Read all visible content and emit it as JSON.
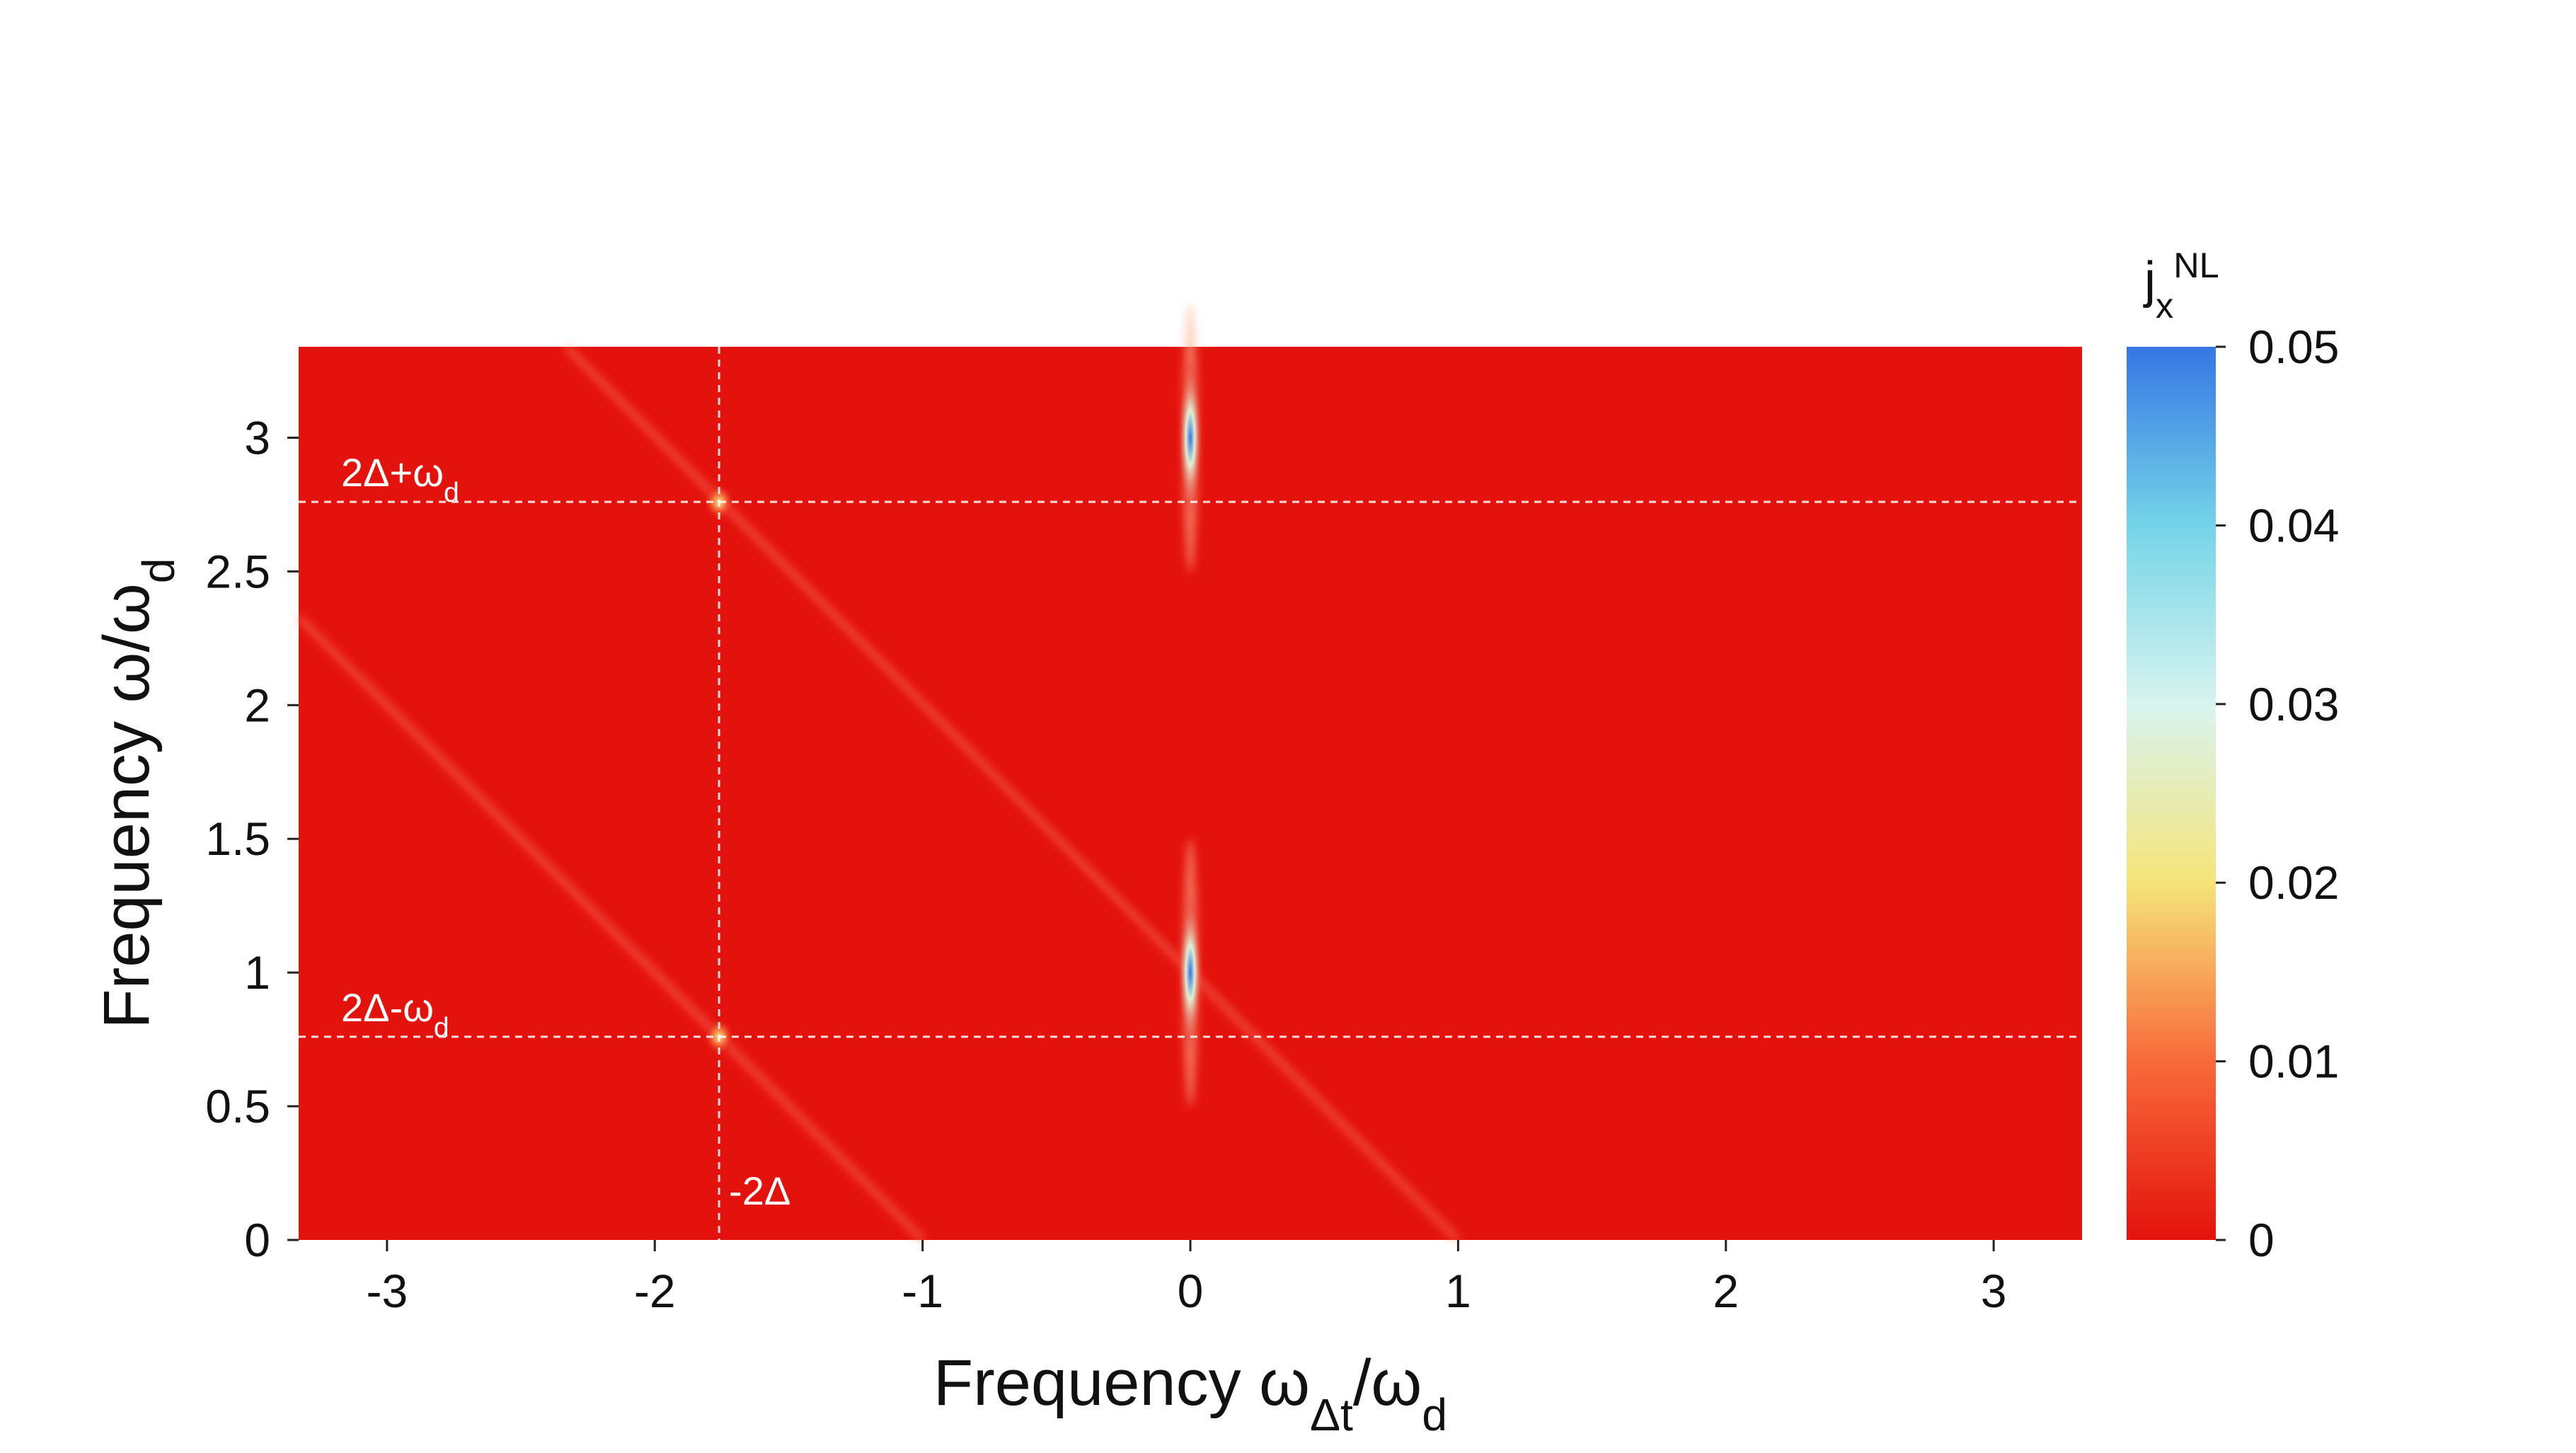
{
  "chart_data": {
    "type": "heatmap",
    "xlabel": [
      "Frequency ω",
      "Δt",
      "/ω",
      "d"
    ],
    "ylabel": [
      "Frequency ω/ω",
      "d"
    ],
    "xlim": [
      -3.33,
      3.33
    ],
    "ylim": [
      0,
      3.34
    ],
    "xticks": [
      -3,
      -2,
      -1,
      0,
      1,
      2,
      3
    ],
    "yticks": [
      0,
      0.5,
      1,
      1.5,
      2,
      2.5,
      3
    ],
    "background": "#e4120c",
    "colorbar": {
      "label": [
        "j",
        "x",
        "NL"
      ],
      "clim": [
        0,
        0.05
      ],
      "ticks": [
        0,
        0.01,
        0.02,
        0.03,
        0.04,
        0.05
      ],
      "colorscale": [
        "#e4120c",
        "#f86a3a",
        "#f6e47a",
        "#d8f4ef",
        "#74d4e8",
        "#3676e4"
      ]
    },
    "peaks": {
      "x": [
        0,
        0,
        -1.76,
        -1.76
      ],
      "y": [
        3,
        1,
        2.76,
        0.76
      ],
      "values": [
        0.05,
        0.05,
        0.022,
        0.022
      ]
    },
    "vlines": [
      {
        "x": -1.76,
        "label": [
          "-2Δ"
        ]
      }
    ],
    "hlines": [
      {
        "y": 2.76,
        "label": [
          "2Δ+ω",
          "d"
        ]
      },
      {
        "y": 0.76,
        "label": [
          "2Δ-ω",
          "d"
        ]
      }
    ]
  }
}
